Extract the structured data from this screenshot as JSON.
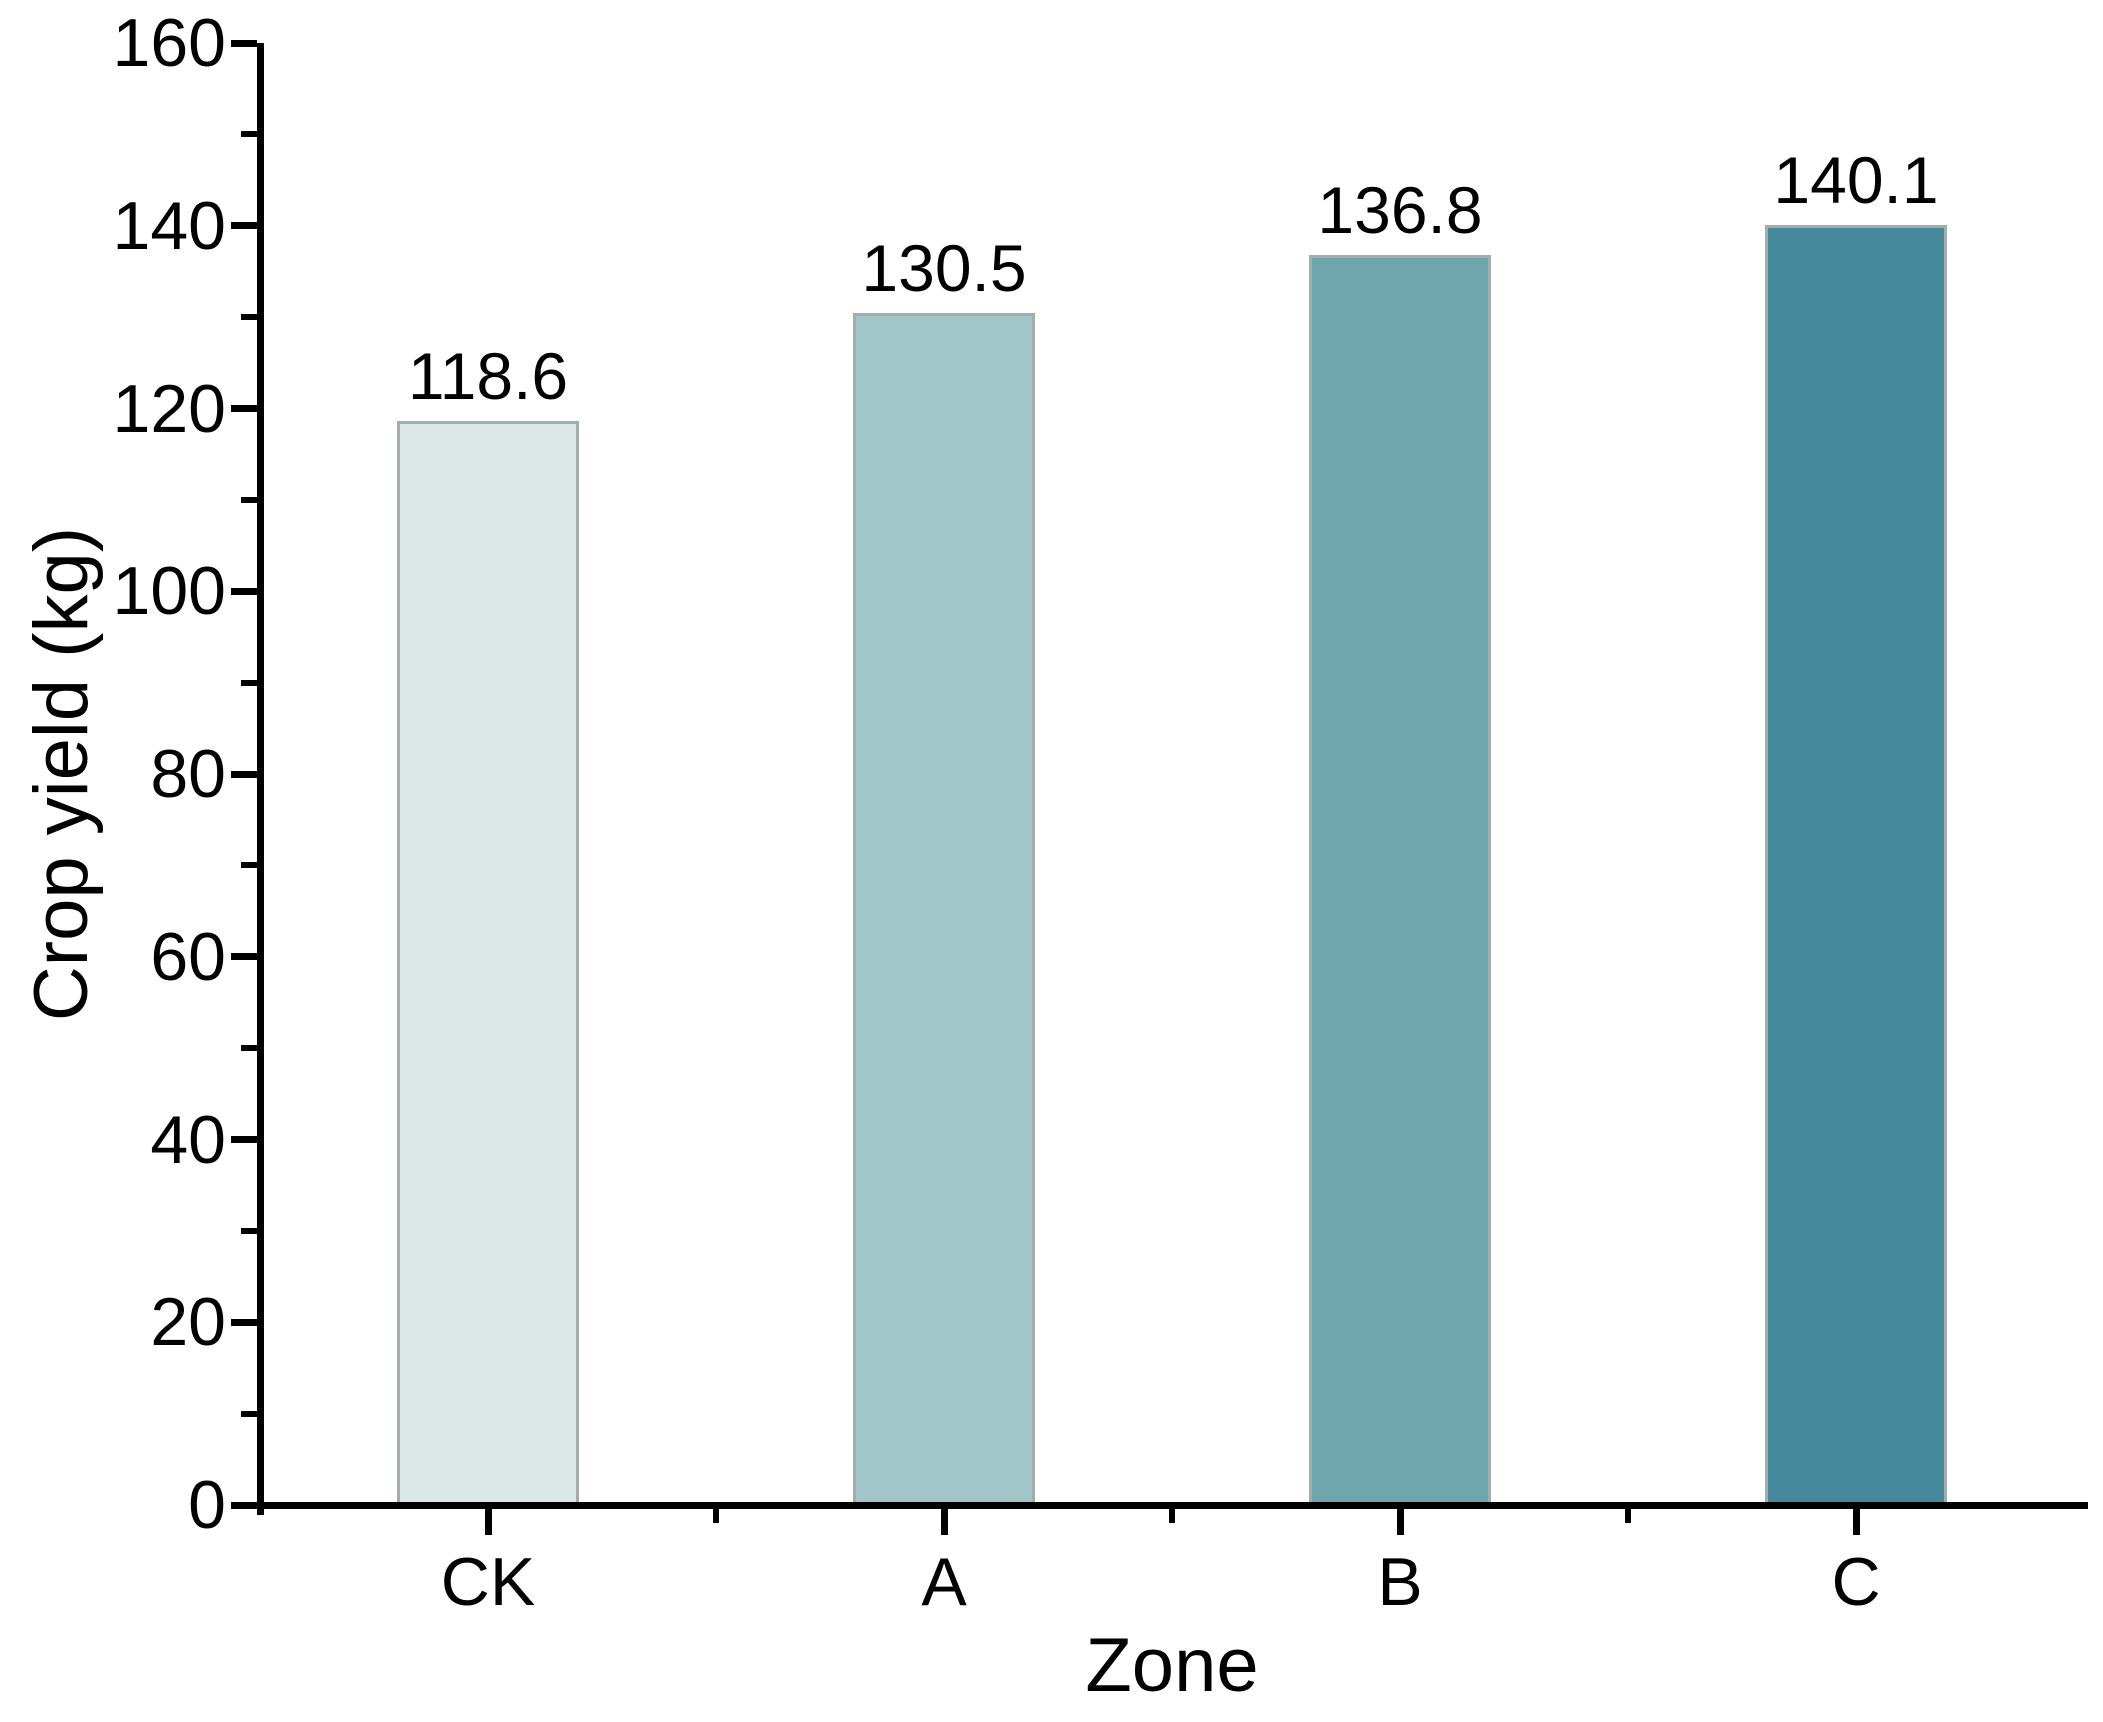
{
  "chart_data": {
    "type": "bar",
    "title": "",
    "xlabel": "Zone",
    "ylabel": "Crop yield (kg)",
    "categories": [
      "CK",
      "A",
      "B",
      "C"
    ],
    "values": [
      118.6,
      130.5,
      136.8,
      140.1
    ],
    "value_labels": [
      "118.6",
      "130.5",
      "136.8",
      "140.1"
    ],
    "bar_colors": [
      "#dce8e6",
      "#a2c5ca",
      "#6fa5ad",
      "#46899a"
    ],
    "bar_border_color": "#a4adad",
    "ylim": [
      0,
      160
    ],
    "yticks_major": [
      0,
      20,
      40,
      60,
      80,
      100,
      120,
      140,
      160
    ],
    "yticks_minor": [
      10,
      30,
      50,
      70,
      90,
      110,
      130,
      150
    ],
    "ytick_labels": [
      "0",
      "20",
      "40",
      "60",
      "80",
      "100",
      "120",
      "140",
      "160"
    ],
    "grid": false,
    "legend": null,
    "axis_color": "#000000",
    "text_color": "#000000",
    "background": "#ffffff"
  }
}
